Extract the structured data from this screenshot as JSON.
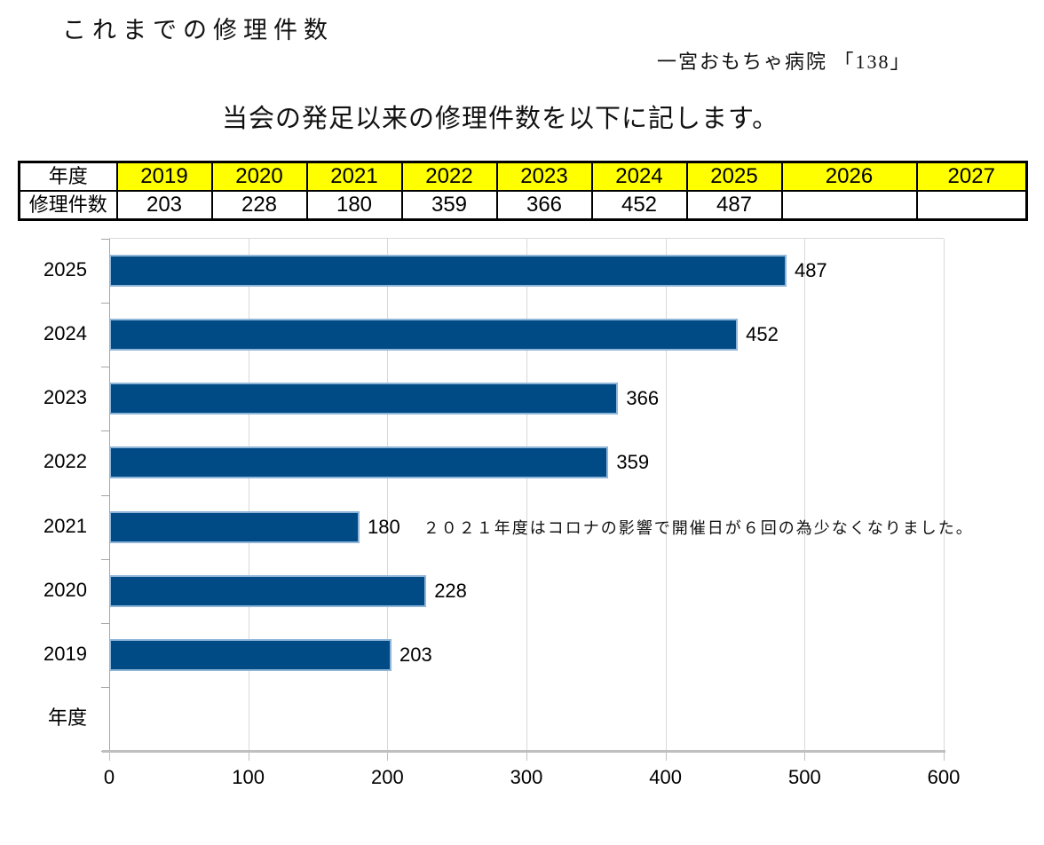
{
  "page": {
    "title": "これまでの修理件数",
    "organization": "一宮おもちゃ病院 「138」",
    "intro": "当会の発足以来の修理件数を以下に記します。"
  },
  "table": {
    "year_label": "年度",
    "count_label": "修理件数",
    "years": [
      "2019",
      "2020",
      "2021",
      "2022",
      "2023",
      "2024",
      "2025",
      "2026",
      "2027"
    ],
    "counts": [
      "203",
      "228",
      "180",
      "359",
      "366",
      "452",
      "487",
      "",
      ""
    ],
    "header_bg": "#FFFF00"
  },
  "chart_data": {
    "type": "bar",
    "orientation": "horizontal",
    "title": "",
    "xlabel": "",
    "ylabel": "",
    "categories": [
      "2025",
      "2024",
      "2023",
      "2022",
      "2021",
      "2020",
      "2019",
      "年度"
    ],
    "values": [
      487,
      452,
      366,
      359,
      180,
      228,
      203,
      null
    ],
    "xlim": [
      0,
      600
    ],
    "x_ticks": [
      0,
      100,
      200,
      300,
      400,
      500,
      600
    ],
    "grid": true,
    "legend": false,
    "bar_color": "#004a86",
    "bar_border_color": "#8fb5d9",
    "annotation": "２０２１年度はコロナの影響で開催日が６回の為少なくなりました。",
    "annotation_category": "2021"
  }
}
